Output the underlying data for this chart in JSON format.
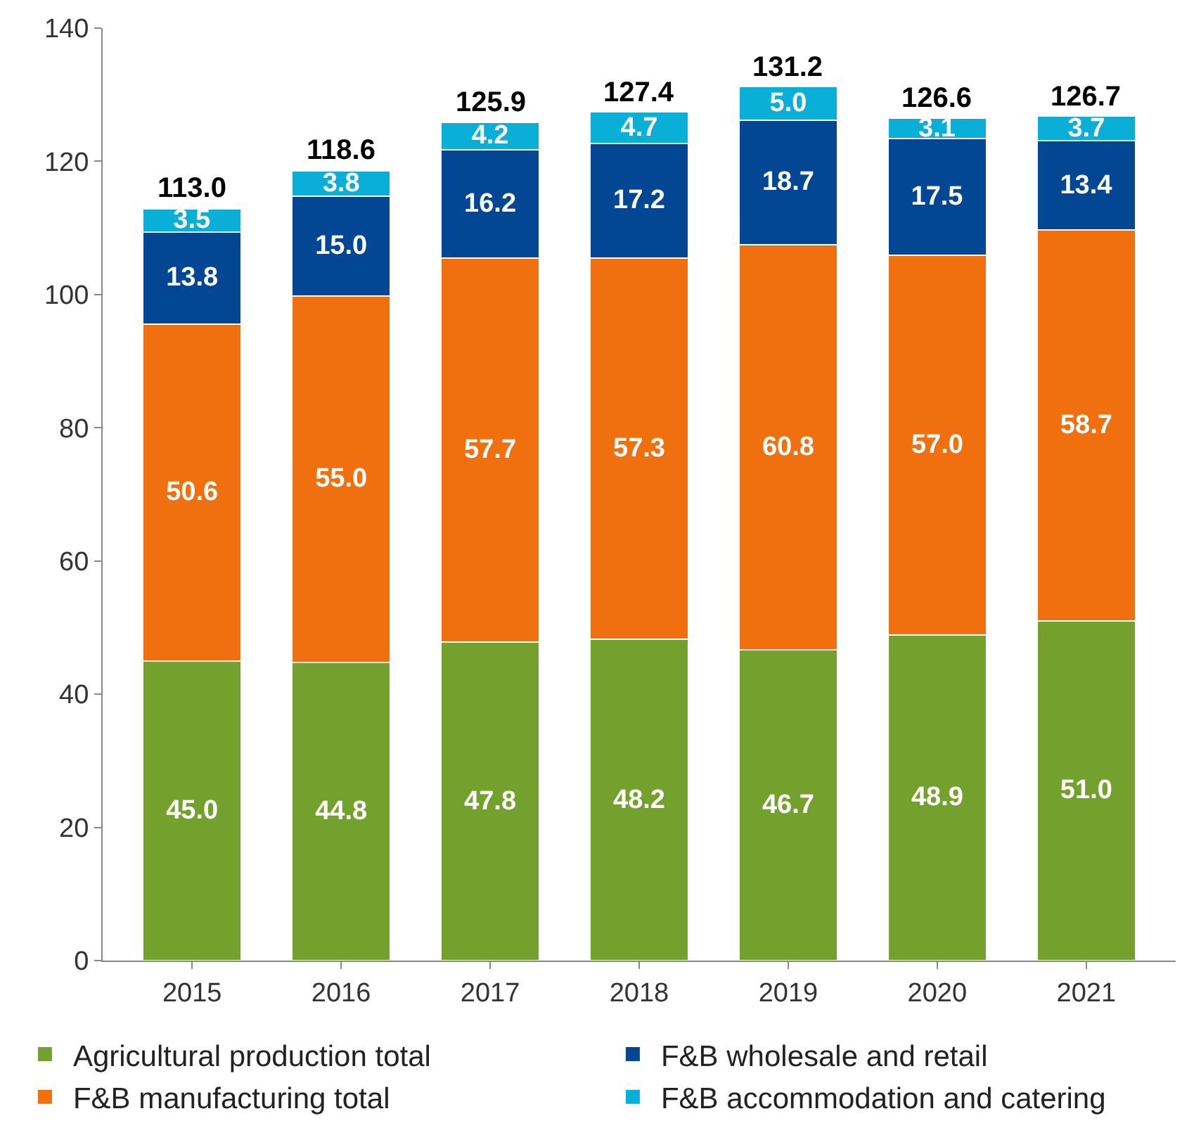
{
  "chart_data": {
    "type": "bar",
    "stacked": true,
    "categories": [
      "2015",
      "2016",
      "2017",
      "2018",
      "2019",
      "2020",
      "2021"
    ],
    "series": [
      {
        "name": "Agricultural production total",
        "color": "#74a12e",
        "values": [
          45.0,
          44.8,
          47.8,
          48.2,
          46.7,
          48.9,
          51.0
        ],
        "value_labels": [
          "45.0",
          "44.8",
          "47.8",
          "48.2",
          "46.7",
          "48.9",
          "51.0"
        ]
      },
      {
        "name": "F&B manufacturing total",
        "color": "#f07010",
        "values": [
          50.6,
          55.0,
          57.7,
          57.3,
          60.8,
          57.0,
          58.7
        ],
        "value_labels": [
          "50.6",
          "55.0",
          "57.7",
          "57.3",
          "60.8",
          "57.0",
          "58.7"
        ]
      },
      {
        "name": "F&B wholesale and retail",
        "color": "#034694",
        "values": [
          13.8,
          15.0,
          16.2,
          17.2,
          18.7,
          17.5,
          13.4
        ],
        "value_labels": [
          "13.8",
          "15.0",
          "16.2",
          "17.2",
          "18.7",
          "17.5",
          "13.4"
        ]
      },
      {
        "name": "F&B accommodation and catering",
        "color": "#0aafd8",
        "values": [
          3.5,
          3.8,
          4.2,
          4.7,
          5.0,
          3.1,
          3.7
        ],
        "value_labels": [
          "3.5",
          "3.8",
          "4.2",
          "4.7",
          "5.0",
          "3.1",
          "3.7"
        ]
      }
    ],
    "totals": [
      "113.0",
      "118.6",
      "125.9",
      "127.4",
      "131.2",
      "126.6",
      "126.7"
    ],
    "ylim": [
      0,
      140
    ],
    "yticks": [
      0,
      20,
      40,
      60,
      80,
      100,
      120,
      140
    ],
    "grid": false,
    "legend": "bottom"
  }
}
